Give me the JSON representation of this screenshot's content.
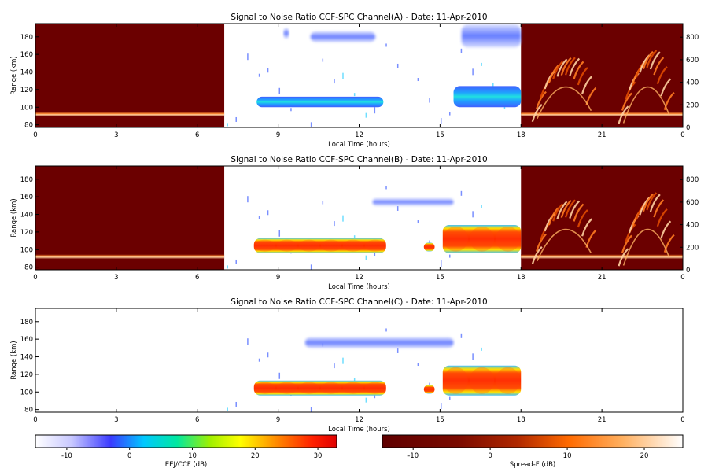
{
  "panels": [
    {
      "title": "Signal to Noise Ratio CCF-SPC Channel(A) - Date: 11-Apr-2010",
      "xlabel": "Local Time (hours)",
      "ylabel": "Range (km)",
      "x_ticks": [
        "0",
        "3",
        "6",
        "9",
        "12",
        "15",
        "18",
        "21",
        "0"
      ],
      "y_ticks": [
        "80",
        "100",
        "120",
        "140",
        "160",
        "180"
      ],
      "y2_ticks": [
        "0",
        "200",
        "400",
        "600",
        "800"
      ],
      "night_background": true,
      "echo_intensity": "weak",
      "spreadf": true
    },
    {
      "title": "Signal to Noise Ratio CCF-SPC Channel(B) - Date: 11-Apr-2010",
      "xlabel": "Local Time (hours)",
      "ylabel": "Range (km)",
      "x_ticks": [
        "0",
        "3",
        "6",
        "9",
        "12",
        "15",
        "18",
        "21",
        "0"
      ],
      "y_ticks": [
        "80",
        "100",
        "120",
        "140",
        "160",
        "180"
      ],
      "y2_ticks": [
        "0",
        "200",
        "400",
        "600",
        "800"
      ],
      "night_background": true,
      "echo_intensity": "strong",
      "spreadf": true
    },
    {
      "title": "Signal to Noise Ratio CCF-SPC Channel(C) - Date: 11-Apr-2010",
      "xlabel": "Local Time (hours)",
      "ylabel": "Range (km)",
      "x_ticks": [
        "0",
        "3",
        "6",
        "9",
        "12",
        "15",
        "18",
        "21",
        "0"
      ],
      "y_ticks": [
        "80",
        "100",
        "120",
        "140",
        "160",
        "180"
      ],
      "y2_ticks": [],
      "night_background": false,
      "echo_intensity": "strong",
      "spreadf": false
    }
  ],
  "colorbars": [
    {
      "label": "EEJ/CCF (dB)",
      "ticks": [
        "-10",
        "0",
        "10",
        "20",
        "30"
      ],
      "tick_values": [
        -10,
        0,
        10,
        20,
        30
      ],
      "range": [
        -15,
        33
      ],
      "colormap": "white-blue-cyan-yellow-red"
    },
    {
      "label": "Spread-F (dB)",
      "ticks": [
        "-10",
        "0",
        "10",
        "20"
      ],
      "tick_values": [
        -10,
        0,
        10,
        20
      ],
      "range": [
        -14,
        25
      ],
      "colormap": "darkred-orange-white"
    }
  ],
  "chart_data": [
    {
      "type": "heatmap",
      "title": "Signal to Noise Ratio CCF-SPC Channel(A) - Date: 11-Apr-2010",
      "xlabel": "Local Time (hours)",
      "ylabel": "Range (km)",
      "xlim": [
        0,
        24
      ],
      "ylim": [
        77,
        195
      ],
      "y2lim": [
        0,
        920
      ],
      "eej_echoes": [
        {
          "t0": 8.2,
          "t1": 12.9,
          "r0": 100,
          "r1": 112,
          "peak_db": 8
        },
        {
          "t0": 9.2,
          "t1": 9.4,
          "r0": 178,
          "r1": 190,
          "peak_db": -3
        },
        {
          "t0": 10.2,
          "t1": 12.6,
          "r0": 174,
          "r1": 186,
          "peak_db": -3
        },
        {
          "t0": 15.5,
          "t1": 18.0,
          "r0": 100,
          "r1": 124,
          "peak_db": 6
        },
        {
          "t0": 15.8,
          "t1": 18.0,
          "r0": 168,
          "r1": 194,
          "peak_db": -2
        }
      ],
      "night_baseline_km": 92,
      "spreadf_plumes": [
        {
          "t0": 18.6,
          "t1": 20.6,
          "h0": 120,
          "h1": 560
        },
        {
          "t0": 21.8,
          "t1": 23.5,
          "h0": 80,
          "h1": 600
        }
      ]
    },
    {
      "type": "heatmap",
      "title": "Signal to Noise Ratio CCF-SPC Channel(B) - Date: 11-Apr-2010",
      "xlabel": "Local Time (hours)",
      "ylabel": "Range (km)",
      "xlim": [
        0,
        24
      ],
      "ylim": [
        77,
        195
      ],
      "y2lim": [
        0,
        920
      ],
      "eej_echoes": [
        {
          "t0": 8.1,
          "t1": 13.0,
          "r0": 96,
          "r1": 113,
          "peak_db": 28
        },
        {
          "t0": 14.4,
          "t1": 14.8,
          "r0": 98,
          "r1": 108,
          "peak_db": 25
        },
        {
          "t0": 15.1,
          "t1": 18.0,
          "r0": 96,
          "r1": 128,
          "peak_db": 25
        },
        {
          "t0": 12.5,
          "t1": 15.5,
          "r0": 150,
          "r1": 158,
          "peak_db": -8
        }
      ],
      "night_baseline_km": 92,
      "spreadf_plumes": [
        {
          "t0": 18.6,
          "t1": 20.6,
          "h0": 120,
          "h1": 560
        },
        {
          "t0": 21.8,
          "t1": 23.5,
          "h0": 80,
          "h1": 600
        }
      ]
    },
    {
      "type": "heatmap",
      "title": "Signal to Noise Ratio CCF-SPC Channel(C) - Date: 11-Apr-2010",
      "xlabel": "Local Time (hours)",
      "ylabel": "Range (km)",
      "xlim": [
        0,
        24
      ],
      "ylim": [
        77,
        195
      ],
      "eej_echoes": [
        {
          "t0": 8.1,
          "t1": 13.0,
          "r0": 96,
          "r1": 113,
          "peak_db": 30
        },
        {
          "t0": 14.4,
          "t1": 14.8,
          "r0": 98,
          "r1": 108,
          "peak_db": 28
        },
        {
          "t0": 15.1,
          "t1": 18.0,
          "r0": 96,
          "r1": 130,
          "peak_db": 28
        },
        {
          "t0": 10.0,
          "t1": 15.5,
          "r0": 150,
          "r1": 162,
          "peak_db": -8
        }
      ]
    }
  ]
}
